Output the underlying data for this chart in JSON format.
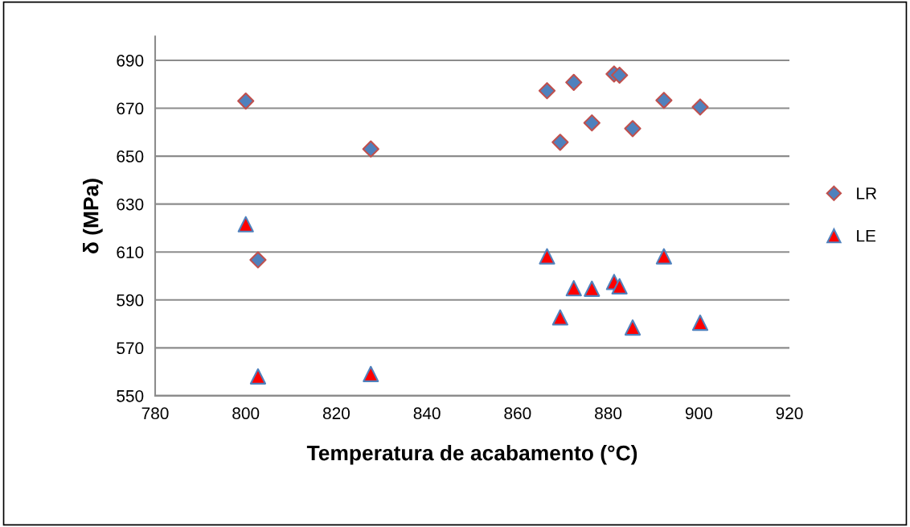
{
  "chart_data": {
    "type": "scatter",
    "xlabel": "Temperatura de acabamento (°C)",
    "ylabel": "δ (MPa)",
    "xlim": [
      780,
      920
    ],
    "xticks": [
      780,
      800,
      820,
      840,
      860,
      880,
      900,
      920
    ],
    "ylim": [
      550,
      700
    ],
    "yticks": [
      550,
      570,
      590,
      610,
      630,
      650,
      670,
      690
    ],
    "grid": "y",
    "legend": "right",
    "series": [
      {
        "name": "LR",
        "color": "#4f81bd",
        "marker": "diamond",
        "x": [
          800,
          802.7,
          827.6,
          866.5,
          872.4,
          881.3,
          882.5,
          892.3,
          900.3,
          876.4,
          885.4,
          869.4
        ],
        "values": [
          673,
          606.7,
          653,
          677.3,
          680.8,
          684.3,
          683.8,
          673.3,
          670.5,
          663.9,
          661.5,
          655.8
        ]
      },
      {
        "name": "LE",
        "color": "#ff0000",
        "marker": "triangle",
        "x": [
          800,
          802.7,
          827.6,
          866.5,
          872.4,
          876.4,
          881.3,
          882.5,
          892.3,
          900.3,
          869.4,
          885.4
        ],
        "values": [
          621.6,
          558.1,
          559.1,
          608.2,
          594.9,
          594.7,
          597.5,
          595.7,
          608.2,
          580.5,
          582.7,
          578.5
        ]
      }
    ]
  }
}
